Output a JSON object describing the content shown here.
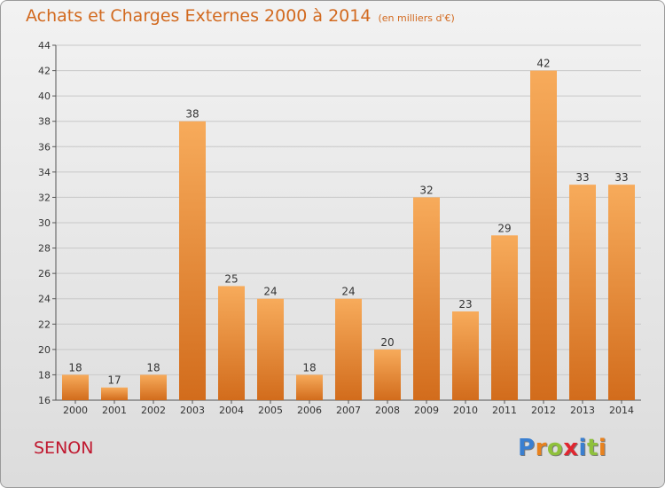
{
  "header": {
    "title": "Achats et Charges Externes 2000 à 2014",
    "unit": "(en milliers d'€)"
  },
  "footer": {
    "town": "SENON",
    "logo_letters": [
      "P",
      "r",
      "o",
      "x",
      "i",
      "t",
      "i"
    ],
    "logo_colors": [
      "#3a7fd0",
      "#e8821e",
      "#8fc13c",
      "#e0262f",
      "#3a7fd0",
      "#8fc13c",
      "#e8821e"
    ]
  },
  "colors": {
    "bar_light": "#f7ab5b",
    "bar_dark": "#d26c1c",
    "title": "#d2691e",
    "town": "#c0182f",
    "grid": "#c8c8c8"
  },
  "chart_data": {
    "type": "bar",
    "title": "Achats et Charges Externes 2000 à 2014",
    "subtitle": "(en milliers d'€)",
    "xlabel": "",
    "ylabel": "",
    "categories": [
      "2000",
      "2001",
      "2002",
      "2003",
      "2004",
      "2005",
      "2006",
      "2007",
      "2008",
      "2009",
      "2010",
      "2011",
      "2012",
      "2013",
      "2014"
    ],
    "values": [
      18,
      17,
      18,
      38,
      25,
      24,
      18,
      24,
      20,
      32,
      23,
      29,
      42,
      33,
      33
    ],
    "ylim": [
      16,
      44
    ],
    "yticks": [
      16,
      18,
      20,
      22,
      24,
      26,
      28,
      30,
      32,
      34,
      36,
      38,
      40,
      42,
      44
    ],
    "grid": true,
    "legend": "none"
  }
}
